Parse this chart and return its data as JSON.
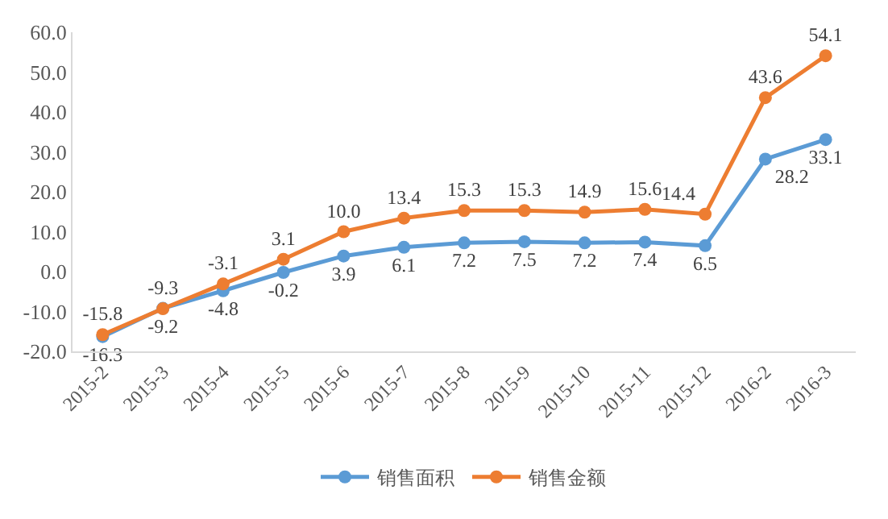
{
  "chart_data": {
    "type": "line",
    "categories": [
      "2015-2",
      "2015-3",
      "2015-4",
      "2015-5",
      "2015-6",
      "2015-7",
      "2015-8",
      "2015-9",
      "2015-10",
      "2015-11",
      "2015-12",
      "2016-2",
      "2016-3"
    ],
    "series": [
      {
        "name": "销售面积",
        "color": "#5b9bd5",
        "values": [
          -16.3,
          -9.2,
          -4.8,
          -0.2,
          3.9,
          6.1,
          7.2,
          7.5,
          7.2,
          7.4,
          6.5,
          28.2,
          33.1
        ],
        "value_labels": [
          "-16.3",
          "-9.2",
          "-4.8",
          "-0.2",
          "3.9",
          "6.1",
          "7.2",
          "7.5",
          "7.2",
          "7.4",
          "6.5",
          "28.2",
          "33.1"
        ]
      },
      {
        "name": "销售金额",
        "color": "#ed7d31",
        "values": [
          -15.8,
          -9.3,
          -3.1,
          3.1,
          10.0,
          13.4,
          15.3,
          15.3,
          14.9,
          15.6,
          14.4,
          43.6,
          54.1
        ],
        "value_labels": [
          "-15.8",
          "-9.3",
          "-3.1",
          "3.1",
          "10.0",
          "13.4",
          "15.3",
          "15.3",
          "14.9",
          "15.6",
          "14.4",
          "43.6",
          "54.1"
        ]
      }
    ],
    "ylim": [
      -20,
      60
    ],
    "yticks": [
      {
        "value": -20,
        "label": "-20.0"
      },
      {
        "value": -10,
        "label": "-10.0"
      },
      {
        "value": 0,
        "label": "0.0"
      },
      {
        "value": 10,
        "label": "10.0"
      },
      {
        "value": 20,
        "label": "20.0"
      },
      {
        "value": 30,
        "label": "30.0"
      },
      {
        "value": 40,
        "label": "40.0"
      },
      {
        "value": 50,
        "label": "50.0"
      },
      {
        "value": 60,
        "label": "60.0"
      }
    ],
    "legend": "bottom",
    "marker": "circle",
    "line_style": "solid"
  }
}
